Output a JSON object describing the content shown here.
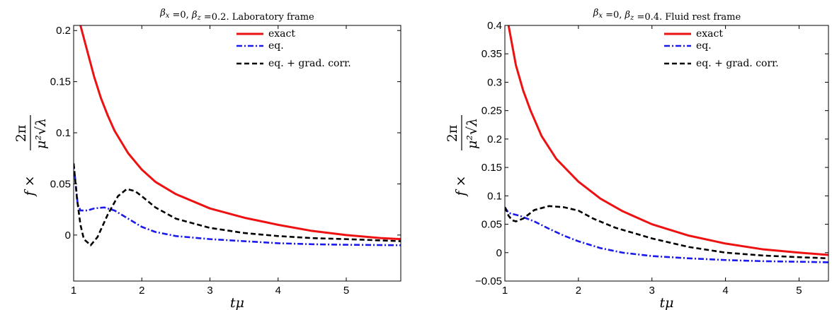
{
  "chart_data": [
    {
      "type": "line",
      "title": "β_x =0, β_z =0.2. Laboratory frame",
      "xlabel": "tμ",
      "ylabel": "f × 2π / (μ²√λ)",
      "xlim": [
        1,
        5.8
      ],
      "ylim": [
        -0.045,
        0.205
      ],
      "xticks": [
        1,
        2,
        3,
        4,
        5
      ],
      "xtick_labels": [
        "1",
        "2",
        "3",
        "4",
        "5"
      ],
      "yticks": [
        0,
        0.05,
        0.1,
        0.15,
        0.2
      ],
      "ytick_labels": [
        "0",
        "0.05",
        "0.1",
        "0.15",
        "0.2"
      ],
      "grid": false,
      "legend_position": "top-right",
      "series": [
        {
          "name": "exact",
          "color": "#ee1111",
          "style": "solid",
          "points": [
            [
              1.1,
              0.205
            ],
            [
              1.2,
              0.18
            ],
            [
              1.3,
              0.155
            ],
            [
              1.4,
              0.134
            ],
            [
              1.5,
              0.117
            ],
            [
              1.6,
              0.102
            ],
            [
              1.8,
              0.08
            ],
            [
              2.0,
              0.064
            ],
            [
              2.2,
              0.052
            ],
            [
              2.5,
              0.04
            ],
            [
              3.0,
              0.026
            ],
            [
              3.5,
              0.017
            ],
            [
              4.0,
              0.01
            ],
            [
              4.5,
              0.004
            ],
            [
              5.0,
              0.0
            ],
            [
              5.5,
              -0.003
            ],
            [
              5.8,
              -0.004
            ]
          ]
        },
        {
          "name": "eq.",
          "color": "#1a1aee",
          "style": "dashdot",
          "points": [
            [
              1.0,
              0.07
            ],
            [
              1.03,
              0.05
            ],
            [
              1.06,
              0.03
            ],
            [
              1.1,
              0.024
            ],
            [
              1.2,
              0.024
            ],
            [
              1.3,
              0.026
            ],
            [
              1.45,
              0.027
            ],
            [
              1.6,
              0.024
            ],
            [
              1.8,
              0.016
            ],
            [
              2.0,
              0.008
            ],
            [
              2.2,
              0.003
            ],
            [
              2.5,
              -0.001
            ],
            [
              3.0,
              -0.004
            ],
            [
              3.5,
              -0.006
            ],
            [
              4.0,
              -0.008
            ],
            [
              4.5,
              -0.009
            ],
            [
              5.0,
              -0.0095
            ],
            [
              5.8,
              -0.01
            ]
          ]
        },
        {
          "name": "eq. + grad. corr.",
          "color": "#000000",
          "style": "dashed",
          "points": [
            [
              1.0,
              0.07
            ],
            [
              1.05,
              0.035
            ],
            [
              1.1,
              0.01
            ],
            [
              1.15,
              -0.004
            ],
            [
              1.25,
              -0.01
            ],
            [
              1.35,
              -0.002
            ],
            [
              1.5,
              0.02
            ],
            [
              1.65,
              0.038
            ],
            [
              1.78,
              0.045
            ],
            [
              1.9,
              0.043
            ],
            [
              2.0,
              0.038
            ],
            [
              2.2,
              0.027
            ],
            [
              2.5,
              0.016
            ],
            [
              3.0,
              0.007
            ],
            [
              3.5,
              0.002
            ],
            [
              4.0,
              -0.001
            ],
            [
              4.5,
              -0.003
            ],
            [
              5.0,
              -0.004
            ],
            [
              5.8,
              -0.006
            ]
          ]
        }
      ]
    },
    {
      "type": "line",
      "title": "β_x =0, β_z =0.4. Fluid rest frame",
      "xlabel": "tμ",
      "ylabel": "f × 2π / (μ²√λ)",
      "xlim": [
        1,
        5.4
      ],
      "ylim": [
        -0.05,
        0.4
      ],
      "xticks": [
        1,
        2,
        3,
        4,
        5
      ],
      "xtick_labels": [
        "1",
        "2",
        "3",
        "4",
        "5"
      ],
      "yticks": [
        -0.05,
        0,
        0.05,
        0.1,
        0.15,
        0.2,
        0.25,
        0.3,
        0.35,
        0.4
      ],
      "ytick_labels": [
        "−0.05",
        "0",
        "0.05",
        "0.1",
        "0.15",
        "0.2",
        "0.25",
        "0.3",
        "0.35",
        "0.4"
      ],
      "grid": false,
      "legend_position": "top-right",
      "series": [
        {
          "name": "exact",
          "color": "#ee1111",
          "style": "solid",
          "points": [
            [
              1.05,
              0.4
            ],
            [
              1.15,
              0.33
            ],
            [
              1.25,
              0.285
            ],
            [
              1.35,
              0.25
            ],
            [
              1.5,
              0.205
            ],
            [
              1.7,
              0.165
            ],
            [
              2.0,
              0.125
            ],
            [
              2.3,
              0.095
            ],
            [
              2.6,
              0.073
            ],
            [
              3.0,
              0.05
            ],
            [
              3.5,
              0.03
            ],
            [
              4.0,
              0.016
            ],
            [
              4.5,
              0.006
            ],
            [
              5.0,
              0.0
            ],
            [
              5.4,
              -0.004
            ]
          ]
        },
        {
          "name": "eq.",
          "color": "#1a1aee",
          "style": "dashdot",
          "points": [
            [
              1.0,
              0.08
            ],
            [
              1.05,
              0.07
            ],
            [
              1.2,
              0.065
            ],
            [
              1.4,
              0.055
            ],
            [
              1.6,
              0.042
            ],
            [
              1.8,
              0.03
            ],
            [
              2.0,
              0.02
            ],
            [
              2.3,
              0.008
            ],
            [
              2.6,
              0.0
            ],
            [
              3.0,
              -0.006
            ],
            [
              3.5,
              -0.01
            ],
            [
              4.0,
              -0.013
            ],
            [
              4.5,
              -0.015
            ],
            [
              5.0,
              -0.016
            ],
            [
              5.4,
              -0.017
            ]
          ]
        },
        {
          "name": "eq. + grad. corr.",
          "color": "#000000",
          "style": "dashed",
          "points": [
            [
              1.0,
              0.08
            ],
            [
              1.05,
              0.065
            ],
            [
              1.1,
              0.057
            ],
            [
              1.15,
              0.055
            ],
            [
              1.25,
              0.06
            ],
            [
              1.4,
              0.075
            ],
            [
              1.6,
              0.082
            ],
            [
              1.8,
              0.08
            ],
            [
              2.0,
              0.074
            ],
            [
              2.2,
              0.06
            ],
            [
              2.5,
              0.044
            ],
            [
              3.0,
              0.025
            ],
            [
              3.5,
              0.01
            ],
            [
              4.0,
              0.0
            ],
            [
              4.5,
              -0.005
            ],
            [
              5.0,
              -0.008
            ],
            [
              5.4,
              -0.01
            ]
          ]
        }
      ]
    }
  ]
}
